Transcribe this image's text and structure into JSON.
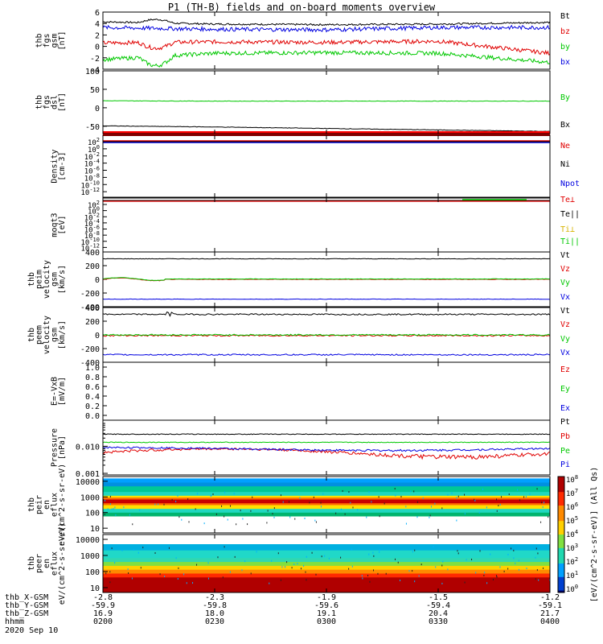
{
  "title": "P1 (TH-B) fields and on-board moments overview",
  "xaxis": {
    "ticks": [
      "0200",
      "0230",
      "0300",
      "0330",
      "0400"
    ],
    "row_labels": [
      "thb_X-GSM",
      "thb_Y-GSM",
      "thb_Z-GSM",
      "hhmm",
      "2020 Sep 10"
    ],
    "ephemeris": {
      "x_gsm": [
        "-2.8",
        "-2.3",
        "-1.9",
        "-1.5",
        "-1.2"
      ],
      "y_gsm": [
        "-59.9",
        "-59.8",
        "-59.6",
        "-59.4",
        "-59.1"
      ],
      "z_gsm": [
        "16.9",
        "18.0",
        "19.1",
        "20.4",
        "21.7"
      ]
    }
  },
  "colorbar": {
    "tick_labels": [
      "10^8",
      "10^7",
      "10^6",
      "10^5",
      "10^4",
      "10^3",
      "10^2",
      "10^1",
      "10^0"
    ],
    "label": "[eV/(cm^2-s-sr-eV)] (All Qs)"
  },
  "chart_data": [
    {
      "type": "line",
      "ylabel": "thb fgs gsm [nT]",
      "ylim": [
        -4,
        6
      ],
      "yticks": [
        "6",
        "4",
        "2",
        "0",
        "-2",
        "-4"
      ],
      "x": [
        "0200",
        "0230",
        "0300",
        "0330",
        "0400"
      ],
      "series": [
        {
          "name": "Bt",
          "color": "#000000",
          "values": [
            4.3,
            3.9,
            3.8,
            3.9,
            4.2
          ]
        },
        {
          "name": "bz",
          "color": "#e00000",
          "values": [
            0.6,
            0.8,
            0.7,
            0.9,
            -1.2
          ]
        },
        {
          "name": "by",
          "color": "#00c800",
          "values": [
            -2.3,
            -1.2,
            -1.1,
            -1.2,
            -2.8
          ]
        },
        {
          "name": "bx",
          "color": "#0000e0",
          "values": [
            3.3,
            3.0,
            2.9,
            3.3,
            3.3
          ]
        }
      ]
    },
    {
      "type": "line",
      "ylabel": "thb fgs dsl [nT]",
      "ylim": [
        -70,
        100
      ],
      "yticks": [
        "100",
        "50",
        "0",
        "-50"
      ],
      "x": [
        "0200",
        "0230",
        "0300",
        "0330",
        "0400"
      ],
      "series": [
        {
          "name": "By",
          "color": "#00c800",
          "values": [
            19,
            18,
            18,
            18,
            18
          ]
        },
        {
          "name": "Bx",
          "color": "#000000",
          "values": [
            -49,
            -52,
            -56,
            -60,
            -64
          ]
        }
      ]
    },
    {
      "type": "line",
      "ylabel": "Density [cm-3]",
      "ylog": true,
      "yticks": [
        "10^2",
        "10^0",
        "10^-2",
        "10^-4",
        "10^-6",
        "10^-8",
        "10^-10",
        "10^-12"
      ],
      "series": [
        {
          "name": "Ne",
          "color": "#e00000",
          "value": 0.5
        },
        {
          "name": "Ni",
          "color": "#000000",
          "value": 0.5
        },
        {
          "name": "Npot",
          "color": "#0000e0",
          "value": 0.3
        }
      ]
    },
    {
      "type": "line",
      "ylabel": "moqt3 [eV]",
      "ylog": true,
      "yticks": [
        "10^2",
        "10^0",
        "10^-2",
        "10^-4",
        "10^-6",
        "10^-8",
        "10^-10",
        "10^-12"
      ],
      "series": [
        {
          "name": "Te⊥",
          "color": "#e00000",
          "value": 100
        },
        {
          "name": "Te||",
          "color": "#000000",
          "value": 100
        },
        {
          "name": "Ti⊥",
          "color": "#d7b400",
          "value": 100
        },
        {
          "name": "Ti||",
          "color": "#00c800",
          "value": 100
        }
      ]
    },
    {
      "type": "line",
      "ylabel": "thb peim velocity gsm [km/s]",
      "ylim": [
        -400,
        400
      ],
      "yticks": [
        "400",
        "200",
        "0",
        "-200",
        "-400"
      ],
      "series": [
        {
          "name": "Vt",
          "color": "#000000",
          "value": 300
        },
        {
          "name": "Vz",
          "color": "#e00000",
          "value": 0
        },
        {
          "name": "Vy",
          "color": "#00c800",
          "value": 5
        },
        {
          "name": "Vx",
          "color": "#0000e0",
          "value": -290
        }
      ]
    },
    {
      "type": "line",
      "ylabel": "thb peem velocity gsm [km/s]",
      "ylim": [
        -400,
        400
      ],
      "yticks": [
        "400",
        "200",
        "0",
        "-200",
        "-400"
      ],
      "series": [
        {
          "name": "Vt",
          "color": "#000000",
          "value": 300
        },
        {
          "name": "Vz",
          "color": "#e00000",
          "value": -10
        },
        {
          "name": "Vy",
          "color": "#00c800",
          "value": 0
        },
        {
          "name": "Vx",
          "color": "#0000e0",
          "value": -290
        }
      ]
    },
    {
      "type": "line",
      "ylabel": "E=-VxB [mV/m]",
      "ylim": [
        0,
        1
      ],
      "yticks": [
        "1.0",
        "0.8",
        "0.6",
        "0.4",
        "0.2",
        "0.0"
      ],
      "series": [
        {
          "name": "Ez",
          "color": "#e00000"
        },
        {
          "name": "Ey",
          "color": "#00c800"
        },
        {
          "name": "Ex",
          "color": "#0000e0"
        }
      ]
    },
    {
      "type": "line",
      "ylabel": "Pressure [nPa]",
      "ylog": true,
      "yticks": [
        "0.010",
        "0.001"
      ],
      "series": [
        {
          "name": "Pt",
          "color": "#000000",
          "value": 0.028
        },
        {
          "name": "Pb",
          "color": "#e00000",
          "value": 0.006
        },
        {
          "name": "Pe",
          "color": "#00c800",
          "value": 0.014
        },
        {
          "name": "Pi",
          "color": "#0000e0",
          "value": 0.008
        }
      ]
    },
    {
      "type": "heatmap",
      "ylabel": "thb peir en eflux eV/(cm^2-s-sr-eV)",
      "ylog": true,
      "yticks": [
        "10000",
        "1000",
        "100",
        "10"
      ]
    },
    {
      "type": "heatmap",
      "ylabel": "thb peer en eflux eV/(cm^2-s-sr-eV)",
      "ylog": true,
      "yticks": [
        "10000",
        "1000",
        "100",
        "10"
      ]
    }
  ]
}
